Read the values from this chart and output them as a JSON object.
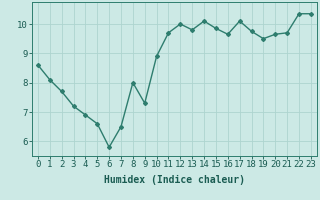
{
  "x": [
    0,
    1,
    2,
    3,
    4,
    5,
    6,
    7,
    8,
    9,
    10,
    11,
    12,
    13,
    14,
    15,
    16,
    17,
    18,
    19,
    20,
    21,
    22,
    23
  ],
  "y": [
    8.6,
    8.1,
    7.7,
    7.2,
    6.9,
    6.6,
    5.8,
    6.5,
    8.0,
    7.3,
    8.9,
    9.7,
    10.0,
    9.8,
    10.1,
    9.85,
    9.65,
    10.1,
    9.75,
    9.5,
    9.65,
    9.7,
    10.35,
    10.35
  ],
  "line_color": "#2e7d6e",
  "marker": "D",
  "marker_size": 2.0,
  "bg_color": "#cce9e5",
  "grid_color": "#aed4cf",
  "axis_color": "#2e7d6e",
  "tick_color": "#1a5c52",
  "xlabel": "Humidex (Indice chaleur)",
  "ylim": [
    5.5,
    10.75
  ],
  "xlim": [
    -0.5,
    23.5
  ],
  "yticks": [
    6,
    7,
    8,
    9,
    10
  ],
  "xticks": [
    0,
    1,
    2,
    3,
    4,
    5,
    6,
    7,
    8,
    9,
    10,
    11,
    12,
    13,
    14,
    15,
    16,
    17,
    18,
    19,
    20,
    21,
    22,
    23
  ],
  "font_family": "monospace",
  "xlabel_fontsize": 7.0,
  "tick_fontsize": 6.5,
  "linewidth": 1.0
}
